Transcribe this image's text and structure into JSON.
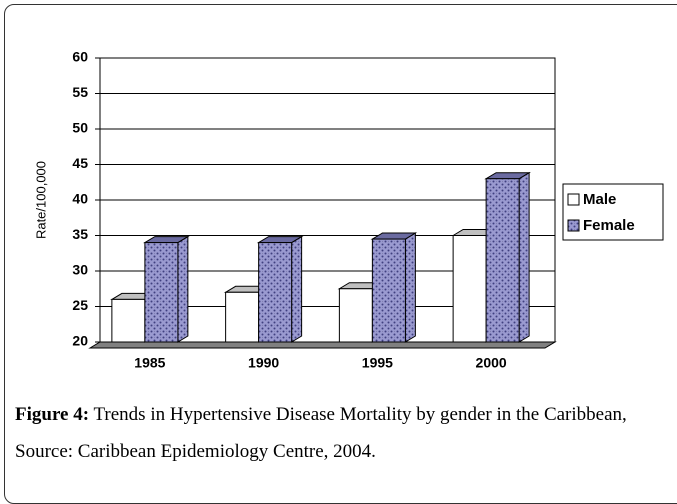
{
  "chart_data": {
    "type": "bar3d",
    "y_label": "Rate/100,000",
    "categories": [
      "1985",
      "1990",
      "1995",
      "2000"
    ],
    "series": [
      {
        "name": "Male",
        "color": "#ffffff",
        "values": [
          26,
          27,
          27.5,
          35
        ]
      },
      {
        "name": "Female",
        "color": "#9a9ad0",
        "values": [
          34,
          34,
          34.5,
          43
        ]
      }
    ],
    "ylim": [
      20,
      60
    ],
    "yticks": [
      20,
      25,
      30,
      35,
      40,
      45,
      50,
      55,
      60
    ],
    "grid": true,
    "legend": "right"
  },
  "caption": {
    "label": "Figure 4:",
    "text": "Trends in Hypertensive Disease Mortality by gender in the Caribbean, Source: Caribbean Epidemiology Centre, 2004."
  }
}
